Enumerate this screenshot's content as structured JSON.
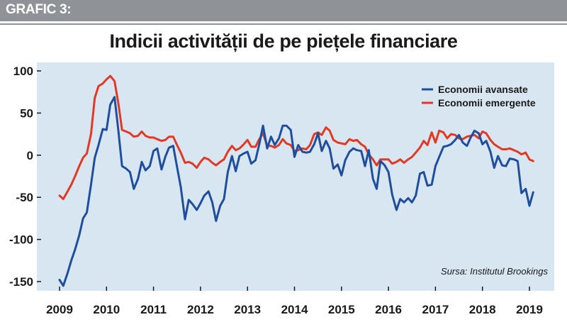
{
  "header": {
    "tag": "GRAFIC 3:"
  },
  "colors": {
    "header_bar": "#8f9398",
    "panel": "#d8e6f1",
    "advanced": "#1f4e9c",
    "emerging": "#e03a24"
  },
  "chart_data": {
    "type": "line",
    "title": "Indicii activității de pe piețele financiare",
    "xlabel": "",
    "ylabel": "",
    "source_note": "Sursa: Institutul Brookings",
    "legend_position": "top-right",
    "grid": false,
    "xlim": [
      2009,
      2019
    ],
    "ylim": [
      -160,
      105
    ],
    "x_ticks": [
      "2009",
      "2010",
      "2011",
      "2012",
      "2013",
      "2014",
      "2015",
      "2016",
      "2017",
      "2018",
      "2019"
    ],
    "y_ticks": [
      "100",
      "50",
      "0",
      "-50",
      "-100",
      "-150"
    ],
    "series": [
      {
        "name": "Economii avansate",
        "color": "#1f4e9c",
        "points": [
          [
            2009.0,
            -148
          ],
          [
            2009.08,
            -155
          ],
          [
            2009.17,
            -140
          ],
          [
            2009.25,
            -125
          ],
          [
            2009.33,
            -112
          ],
          [
            2009.42,
            -95
          ],
          [
            2009.5,
            -75
          ],
          [
            2009.58,
            -68
          ],
          [
            2009.67,
            -35
          ],
          [
            2009.75,
            -3
          ],
          [
            2009.83,
            12
          ],
          [
            2009.92,
            31
          ],
          [
            2010.0,
            30
          ],
          [
            2010.08,
            60
          ],
          [
            2010.17,
            69
          ],
          [
            2010.25,
            30
          ],
          [
            2010.33,
            -13
          ],
          [
            2010.42,
            -16
          ],
          [
            2010.5,
            -20
          ],
          [
            2010.58,
            -40
          ],
          [
            2010.67,
            -28
          ],
          [
            2010.75,
            -8
          ],
          [
            2010.83,
            -18
          ],
          [
            2010.92,
            -13
          ],
          [
            2011.0,
            5
          ],
          [
            2011.08,
            8
          ],
          [
            2011.17,
            -17
          ],
          [
            2011.25,
            -2
          ],
          [
            2011.33,
            9
          ],
          [
            2011.42,
            11
          ],
          [
            2011.5,
            -14
          ],
          [
            2011.58,
            -38
          ],
          [
            2011.67,
            -76
          ],
          [
            2011.75,
            -53
          ],
          [
            2011.83,
            -58
          ],
          [
            2011.92,
            -65
          ],
          [
            2012.0,
            -57
          ],
          [
            2012.08,
            -48
          ],
          [
            2012.17,
            -43
          ],
          [
            2012.25,
            -56
          ],
          [
            2012.33,
            -78
          ],
          [
            2012.42,
            -60
          ],
          [
            2012.5,
            -52
          ],
          [
            2012.58,
            -20
          ],
          [
            2012.67,
            -1
          ],
          [
            2012.75,
            -19
          ],
          [
            2012.83,
            -1
          ],
          [
            2012.92,
            2
          ],
          [
            2013.0,
            4
          ],
          [
            2013.08,
            -10
          ],
          [
            2013.17,
            -6
          ],
          [
            2013.25,
            13
          ],
          [
            2013.33,
            35
          ],
          [
            2013.42,
            8
          ],
          [
            2013.5,
            22
          ],
          [
            2013.58,
            12
          ],
          [
            2013.67,
            20
          ],
          [
            2013.75,
            35
          ],
          [
            2013.83,
            35
          ],
          [
            2013.92,
            30
          ],
          [
            2014.0,
            -2
          ],
          [
            2014.08,
            12
          ],
          [
            2014.17,
            4
          ],
          [
            2014.25,
            3
          ],
          [
            2014.33,
            4
          ],
          [
            2014.42,
            13
          ],
          [
            2014.5,
            26
          ],
          [
            2014.58,
            5
          ],
          [
            2014.67,
            17
          ],
          [
            2014.75,
            8
          ],
          [
            2014.83,
            -16
          ],
          [
            2014.92,
            -11
          ],
          [
            2015.0,
            -24
          ],
          [
            2015.08,
            -6
          ],
          [
            2015.17,
            4
          ],
          [
            2015.25,
            8
          ],
          [
            2015.33,
            6
          ],
          [
            2015.42,
            5
          ],
          [
            2015.5,
            -13
          ],
          [
            2015.58,
            6
          ],
          [
            2015.67,
            -28
          ],
          [
            2015.75,
            -40
          ],
          [
            2015.83,
            -7
          ],
          [
            2015.92,
            -12
          ],
          [
            2016.0,
            -20
          ],
          [
            2016.08,
            -47
          ],
          [
            2016.17,
            -65
          ],
          [
            2016.25,
            -52
          ],
          [
            2016.33,
            -56
          ],
          [
            2016.42,
            -51
          ],
          [
            2016.5,
            -56
          ],
          [
            2016.58,
            -48
          ],
          [
            2016.67,
            -22
          ],
          [
            2016.75,
            -20
          ],
          [
            2016.83,
            -36
          ],
          [
            2016.92,
            -35
          ],
          [
            2017.0,
            -13
          ],
          [
            2017.08,
            -2
          ],
          [
            2017.17,
            10
          ],
          [
            2017.25,
            11
          ],
          [
            2017.33,
            13
          ],
          [
            2017.42,
            18
          ],
          [
            2017.5,
            24
          ],
          [
            2017.58,
            15
          ],
          [
            2017.67,
            11
          ],
          [
            2017.75,
            21
          ],
          [
            2017.83,
            29
          ],
          [
            2017.92,
            26
          ],
          [
            2018.0,
            13
          ],
          [
            2018.08,
            17
          ],
          [
            2018.17,
            4
          ],
          [
            2018.25,
            -15
          ],
          [
            2018.33,
            -1
          ],
          [
            2018.42,
            -12
          ],
          [
            2018.5,
            -13
          ],
          [
            2018.58,
            -4
          ],
          [
            2018.67,
            -5
          ],
          [
            2018.75,
            -7
          ],
          [
            2018.83,
            -45
          ],
          [
            2018.92,
            -40
          ],
          [
            2019.0,
            -60
          ],
          [
            2019.08,
            -44
          ]
        ]
      },
      {
        "name": "Economii emergente",
        "color": "#e03a24",
        "points": [
          [
            2009.0,
            -48
          ],
          [
            2009.08,
            -52
          ],
          [
            2009.17,
            -43
          ],
          [
            2009.25,
            -35
          ],
          [
            2009.33,
            -25
          ],
          [
            2009.42,
            -13
          ],
          [
            2009.5,
            -3
          ],
          [
            2009.58,
            2
          ],
          [
            2009.67,
            25
          ],
          [
            2009.75,
            68
          ],
          [
            2009.83,
            82
          ],
          [
            2009.92,
            85
          ],
          [
            2010.0,
            90
          ],
          [
            2010.08,
            94
          ],
          [
            2010.17,
            88
          ],
          [
            2010.25,
            62
          ],
          [
            2010.33,
            30
          ],
          [
            2010.42,
            28
          ],
          [
            2010.5,
            26
          ],
          [
            2010.58,
            22
          ],
          [
            2010.67,
            23
          ],
          [
            2010.75,
            28
          ],
          [
            2010.83,
            23
          ],
          [
            2010.92,
            21
          ],
          [
            2011.0,
            21
          ],
          [
            2011.08,
            19
          ],
          [
            2011.17,
            17
          ],
          [
            2011.25,
            18
          ],
          [
            2011.33,
            22
          ],
          [
            2011.42,
            22
          ],
          [
            2011.5,
            12
          ],
          [
            2011.58,
            3
          ],
          [
            2011.67,
            -9
          ],
          [
            2011.75,
            -8
          ],
          [
            2011.83,
            -10
          ],
          [
            2011.92,
            -15
          ],
          [
            2012.0,
            -8
          ],
          [
            2012.08,
            -3
          ],
          [
            2012.17,
            -5
          ],
          [
            2012.25,
            -9
          ],
          [
            2012.33,
            -12
          ],
          [
            2012.42,
            -8
          ],
          [
            2012.5,
            -5
          ],
          [
            2012.58,
            4
          ],
          [
            2012.67,
            11
          ],
          [
            2012.75,
            6
          ],
          [
            2012.83,
            8
          ],
          [
            2012.92,
            13
          ],
          [
            2013.0,
            18
          ],
          [
            2013.08,
            10
          ],
          [
            2013.17,
            10
          ],
          [
            2013.25,
            19
          ],
          [
            2013.33,
            26
          ],
          [
            2013.42,
            11
          ],
          [
            2013.5,
            11
          ],
          [
            2013.58,
            9
          ],
          [
            2013.67,
            12
          ],
          [
            2013.75,
            19
          ],
          [
            2013.83,
            14
          ],
          [
            2013.92,
            12
          ],
          [
            2014.0,
            5
          ],
          [
            2014.08,
            6
          ],
          [
            2014.17,
            8
          ],
          [
            2014.25,
            7
          ],
          [
            2014.33,
            12
          ],
          [
            2014.42,
            25
          ],
          [
            2014.5,
            27
          ],
          [
            2014.58,
            24
          ],
          [
            2014.67,
            33
          ],
          [
            2014.75,
            29
          ],
          [
            2014.83,
            18
          ],
          [
            2014.92,
            15
          ],
          [
            2015.0,
            14
          ],
          [
            2015.08,
            13
          ],
          [
            2015.17,
            19
          ],
          [
            2015.25,
            17
          ],
          [
            2015.33,
            18
          ],
          [
            2015.42,
            13
          ],
          [
            2015.5,
            10
          ],
          [
            2015.58,
            1
          ],
          [
            2015.67,
            -5
          ],
          [
            2015.75,
            -12
          ],
          [
            2015.83,
            -5
          ],
          [
            2015.92,
            -5
          ],
          [
            2016.0,
            -5
          ],
          [
            2016.08,
            -10
          ],
          [
            2016.17,
            -8
          ],
          [
            2016.25,
            -5
          ],
          [
            2016.33,
            -9
          ],
          [
            2016.42,
            -5
          ],
          [
            2016.5,
            -2
          ],
          [
            2016.58,
            3
          ],
          [
            2016.67,
            9
          ],
          [
            2016.75,
            17
          ],
          [
            2016.83,
            12
          ],
          [
            2016.92,
            27
          ],
          [
            2017.0,
            15
          ],
          [
            2017.08,
            29
          ],
          [
            2017.17,
            27
          ],
          [
            2017.25,
            20
          ],
          [
            2017.33,
            25
          ],
          [
            2017.42,
            24
          ],
          [
            2017.5,
            20
          ],
          [
            2017.58,
            19
          ],
          [
            2017.67,
            22
          ],
          [
            2017.75,
            23
          ],
          [
            2017.83,
            24
          ],
          [
            2017.92,
            20
          ],
          [
            2018.0,
            28
          ],
          [
            2018.08,
            26
          ],
          [
            2018.17,
            18
          ],
          [
            2018.25,
            13
          ],
          [
            2018.33,
            10
          ],
          [
            2018.42,
            7
          ],
          [
            2018.5,
            7
          ],
          [
            2018.58,
            8
          ],
          [
            2018.67,
            6
          ],
          [
            2018.75,
            4
          ],
          [
            2018.83,
            1
          ],
          [
            2018.92,
            3
          ],
          [
            2019.0,
            -5
          ],
          [
            2019.08,
            -7
          ]
        ]
      }
    ]
  }
}
